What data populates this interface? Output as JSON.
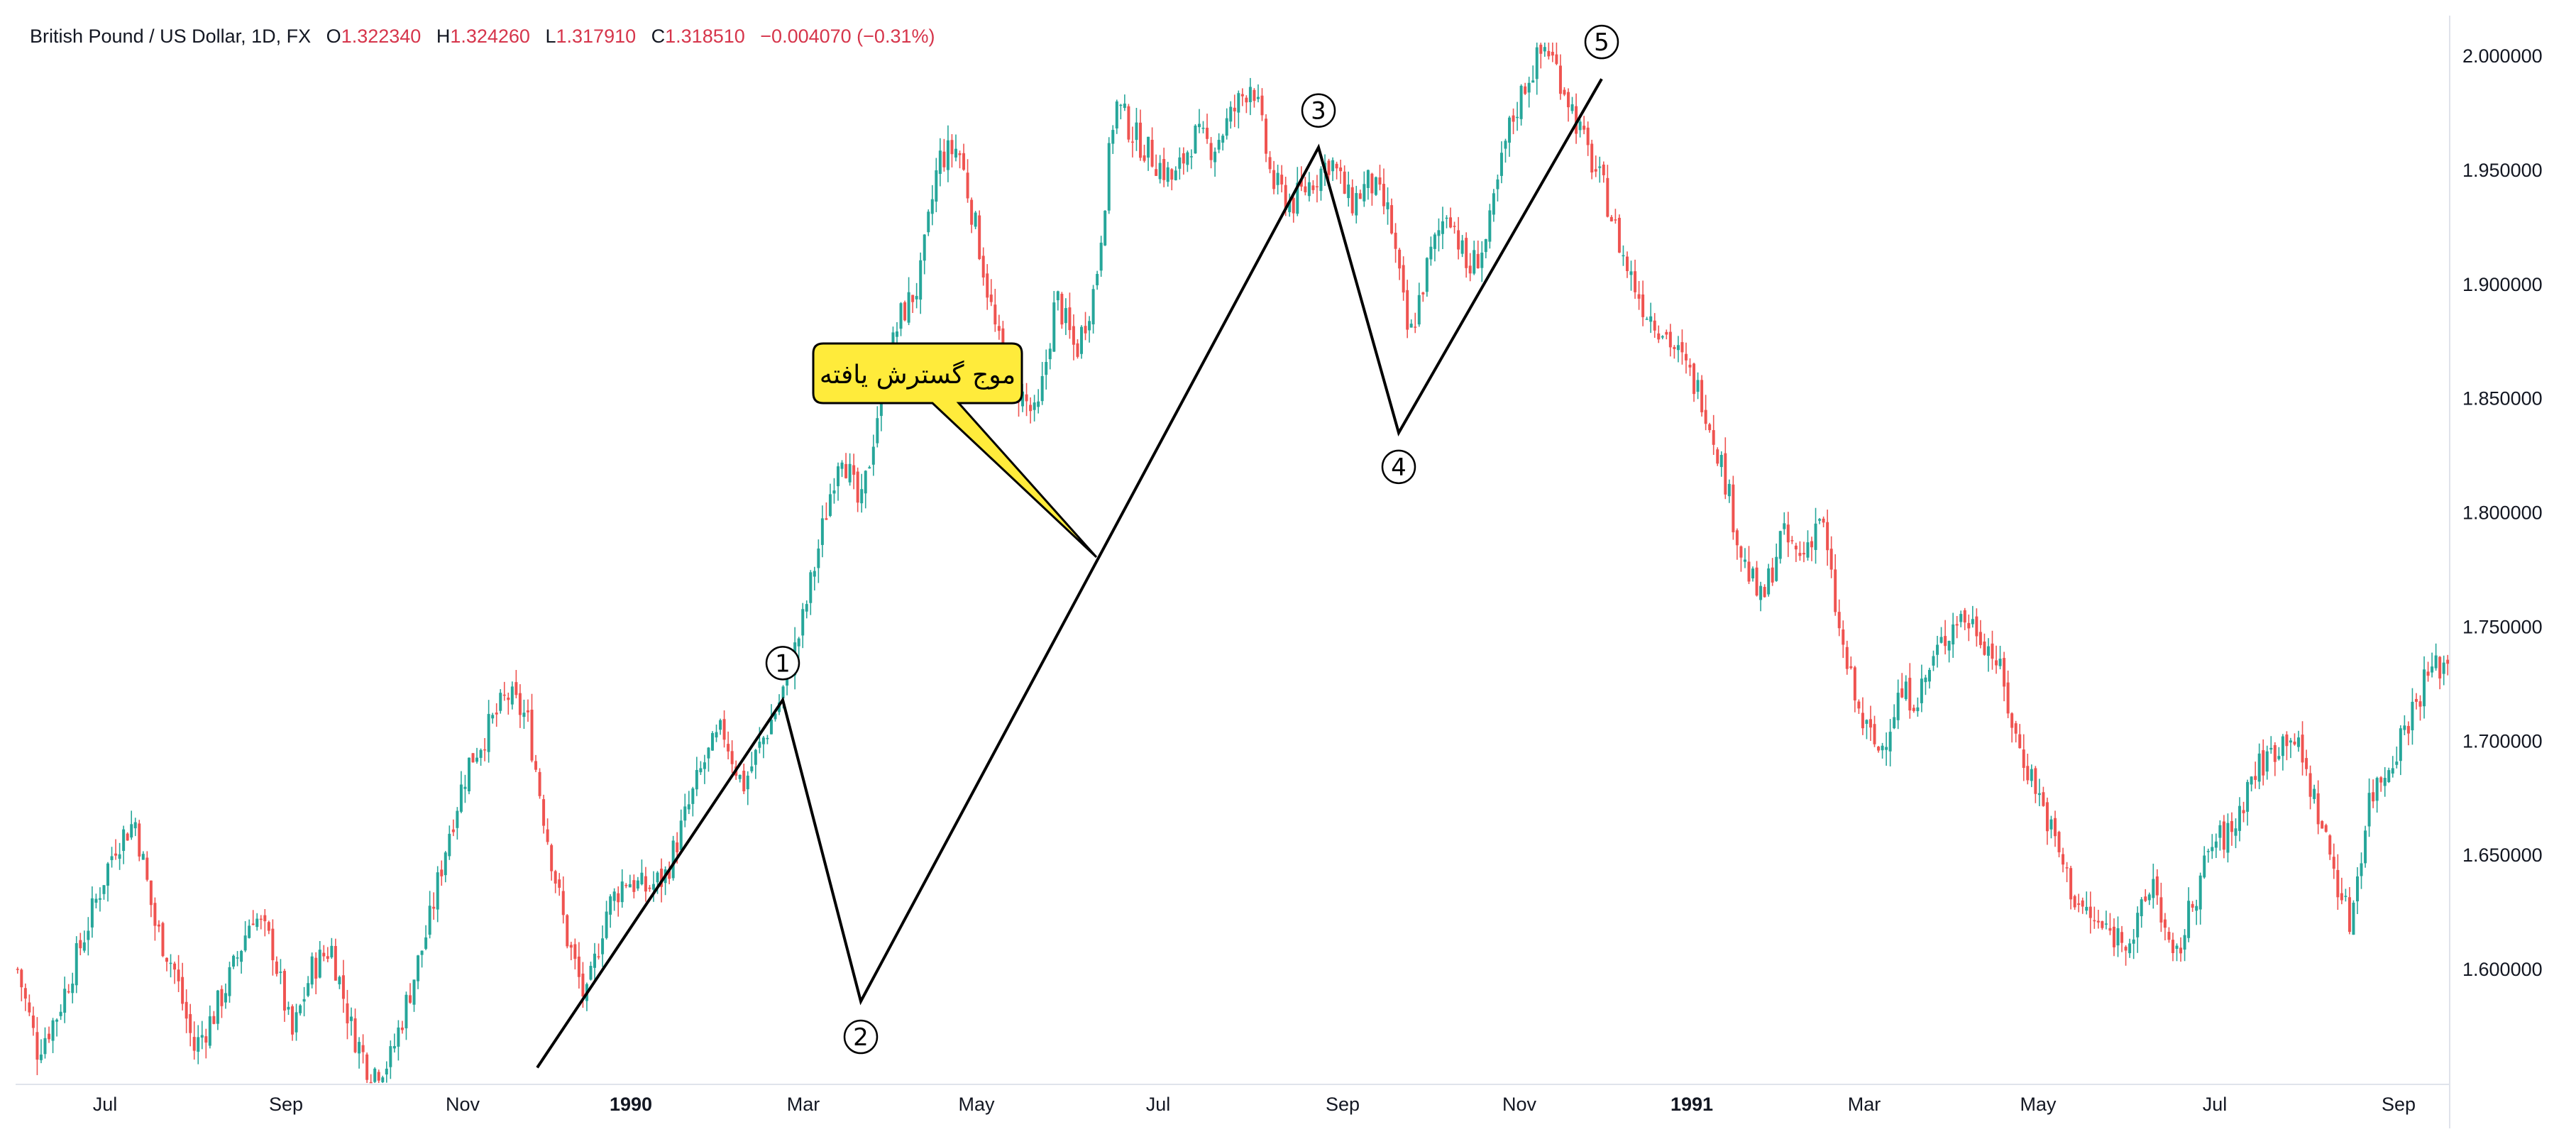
{
  "header": {
    "symbol": "British Pound / US Dollar, 1D, FX",
    "o_label": "O",
    "o_value": "1.322340",
    "h_label": "H",
    "h_value": "1.324260",
    "l_label": "L",
    "l_value": "1.317910",
    "c_label": "C",
    "c_value": "1.318510",
    "change": "−0.004070 (−0.31%)"
  },
  "callout": {
    "text": "موج گسترش یافته"
  },
  "colors": {
    "up": "#26a69a",
    "down": "#ef5350",
    "callout_fill": "#ffeb3b",
    "header_values": "#d6354b"
  },
  "chart_data": {
    "type": "candlestick",
    "y_axis": {
      "min": 1.55,
      "max": 2.0,
      "side": "right",
      "ticks": [
        "2.000000",
        "1.950000",
        "1.900000",
        "1.850000",
        "1.800000",
        "1.750000",
        "1.700000",
        "1.650000",
        "1.600000"
      ]
    },
    "x_axis": {
      "ticks": [
        {
          "label": "Jul",
          "bold": false
        },
        {
          "label": "Sep",
          "bold": false
        },
        {
          "label": "Nov",
          "bold": false
        },
        {
          "label": "1990",
          "bold": true
        },
        {
          "label": "Mar",
          "bold": false
        },
        {
          "label": "May",
          "bold": false
        },
        {
          "label": "Jul",
          "bold": false
        },
        {
          "label": "Sep",
          "bold": false
        },
        {
          "label": "Nov",
          "bold": false
        },
        {
          "label": "1991",
          "bold": true
        },
        {
          "label": "Mar",
          "bold": false
        },
        {
          "label": "May",
          "bold": false
        },
        {
          "label": "Jul",
          "bold": false
        },
        {
          "label": "Sep",
          "bold": false
        }
      ]
    },
    "price_path": [
      1.6,
      1.565,
      1.58,
      1.605,
      1.63,
      1.655,
      1.665,
      1.62,
      1.6,
      1.565,
      1.58,
      1.6,
      1.625,
      1.61,
      1.57,
      1.6,
      1.61,
      1.575,
      1.555,
      1.56,
      1.59,
      1.62,
      1.66,
      1.69,
      1.705,
      1.72,
      1.71,
      1.66,
      1.615,
      1.585,
      1.625,
      1.64,
      1.635,
      1.64,
      1.665,
      1.69,
      1.705,
      1.68,
      1.7,
      1.72,
      1.75,
      1.79,
      1.83,
      1.8,
      1.85,
      1.885,
      1.9,
      1.955,
      1.96,
      1.92,
      1.875,
      1.855,
      1.84,
      1.895,
      1.87,
      1.9,
      1.98,
      1.965,
      1.955,
      1.945,
      1.965,
      1.96,
      1.975,
      1.99,
      1.945,
      1.935,
      1.945,
      1.955,
      1.935,
      1.945,
      1.93,
      1.875,
      1.91,
      1.935,
      1.905,
      1.92,
      1.965,
      1.99,
      2.005,
      1.985,
      1.96,
      1.94,
      1.91,
      1.89,
      1.88,
      1.865,
      1.85,
      1.82,
      1.78,
      1.76,
      1.79,
      1.78,
      1.8,
      1.745,
      1.71,
      1.695,
      1.72,
      1.72,
      1.74,
      1.755,
      1.75,
      1.735,
      1.7,
      1.68,
      1.655,
      1.63,
      1.62,
      1.615,
      1.615,
      1.64,
      1.6,
      1.63,
      1.655,
      1.66,
      1.685,
      1.695,
      1.705,
      1.68,
      1.65,
      1.62,
      1.675,
      1.69,
      1.71,
      1.73,
      1.735
    ],
    "waves": [
      {
        "label": "1",
        "value": 1.718
      },
      {
        "label": "2",
        "value": 1.586
      },
      {
        "label": "3",
        "value": 1.96
      },
      {
        "label": "4",
        "value": 1.835
      },
      {
        "label": "5",
        "value": 1.99
      }
    ],
    "wave_start_value": 1.557
  }
}
